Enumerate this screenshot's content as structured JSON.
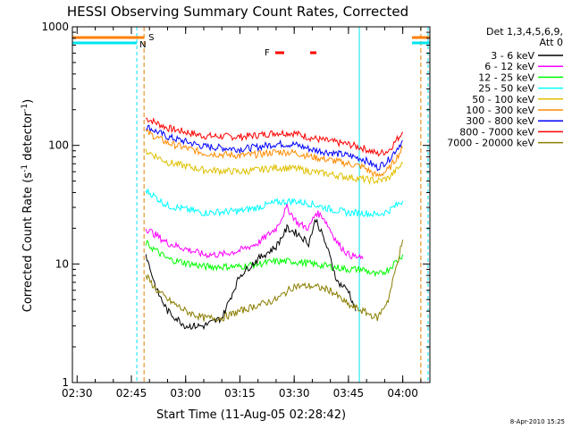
{
  "colors": {
    "background": "#ffffff",
    "axis": "#000000",
    "header_bars": "#ff7f00"
  },
  "chart_data": {
    "type": "line",
    "title": "HESSI Observing Summary Count Rates, Corrected",
    "xlabel": "Start Time (11-Aug-05 02:28:42)",
    "ylabel_prefix": "Corrected Count Rate (s",
    "ylabel_sup1": "-1",
    "ylabel_mid": " detector",
    "ylabel_sup2": "-1",
    "ylabel_suffix": ")",
    "y_scale": "log",
    "ylim": [
      1,
      1000
    ],
    "xlim": [
      "02:28:42",
      "04:07:30"
    ],
    "x_ticks": [
      "02:30",
      "02:45",
      "03:00",
      "03:15",
      "03:30",
      "03:45",
      "04:00"
    ],
    "y_ticks": [
      "1",
      "10",
      "100",
      "1000"
    ],
    "legend": {
      "position": "right",
      "header_line1": "Det 1,3,4,5,6,9,",
      "header_line2": "Att 0",
      "entries": [
        {
          "label": "3 - 6 keV",
          "color": "#000000"
        },
        {
          "label": "6 - 12 keV",
          "color": "#ff00ff"
        },
        {
          "label": "12 - 25 keV",
          "color": "#00ff00"
        },
        {
          "label": "25 - 50 keV",
          "color": "#00ffff"
        },
        {
          "label": "50 - 100 keV",
          "color": "#e0c000"
        },
        {
          "label": "100 - 300 keV",
          "color": "#ff8c00"
        },
        {
          "label": "300 - 800 keV",
          "color": "#0000ff"
        },
        {
          "label": "800 - 7000 keV",
          "color": "#ff0000"
        },
        {
          "label": "7000 - 20000 keV",
          "color": "#8b7d00"
        }
      ]
    },
    "series": [
      {
        "name": "800 - 7000 keV",
        "color": "#ff0000",
        "x": [
          "02:49:00",
          "02:55:00",
          "03:05:00",
          "03:15:00",
          "03:20:00",
          "03:25:00",
          "03:30:00",
          "03:35:00",
          "03:40:00",
          "03:45:00",
          "03:49:00",
          "03:53:00",
          "03:56:00",
          "04:00:00"
        ],
        "y": [
          170,
          140,
          120,
          118,
          122,
          128,
          127,
          115,
          108,
          102,
          95,
          85,
          90,
          130
        ]
      },
      {
        "name": "300 - 800 keV",
        "color": "#0000ff",
        "x": [
          "02:49:00",
          "02:55:00",
          "03:05:00",
          "03:15:00",
          "03:20:00",
          "03:25:00",
          "03:30:00",
          "03:35:00",
          "03:40:00",
          "03:45:00",
          "03:49:00",
          "03:53:00",
          "03:56:00",
          "04:00:00"
        ],
        "y": [
          145,
          118,
          98,
          93,
          97,
          103,
          102,
          92,
          87,
          82,
          77,
          65,
          75,
          110
        ]
      },
      {
        "name": "100 - 300 keV",
        "color": "#ff8c00",
        "x": [
          "02:49:00",
          "02:55:00",
          "03:05:00",
          "03:15:00",
          "03:20:00",
          "03:25:00",
          "03:30:00",
          "03:35:00",
          "03:40:00",
          "03:45:00",
          "03:49:00",
          "03:53:00",
          "03:56:00",
          "04:00:00"
        ],
        "y": [
          130,
          105,
          86,
          82,
          84,
          88,
          87,
          80,
          75,
          70,
          66,
          55,
          62,
          95
        ]
      },
      {
        "name": "50 - 100 keV",
        "color": "#e0c000",
        "x": [
          "02:49:00",
          "02:55:00",
          "03:05:00",
          "03:15:00",
          "03:20:00",
          "03:25:00",
          "03:30:00",
          "03:35:00",
          "03:40:00",
          "03:45:00",
          "03:49:00",
          "03:53:00",
          "03:56:00",
          "04:00:00"
        ],
        "y": [
          90,
          72,
          62,
          60,
          62,
          65,
          64,
          60,
          57,
          54,
          52,
          50,
          53,
          70
        ]
      },
      {
        "name": "25 - 50 keV",
        "color": "#00ffff",
        "x": [
          "02:49:00",
          "02:55:00",
          "03:05:00",
          "03:15:00",
          "03:20:00",
          "03:25:00",
          "03:30:00",
          "03:35:00",
          "03:40:00",
          "03:45:00",
          "03:49:00",
          "03:53:00",
          "03:56:00",
          "04:00:00"
        ],
        "y": [
          42,
          31,
          27,
          28,
          30,
          33,
          34,
          32,
          29,
          27,
          27,
          26,
          28,
          34
        ]
      },
      {
        "name": "6 - 12 keV",
        "color": "#ff00ff",
        "x": [
          "02:49:00",
          "02:55:00",
          "03:05:00",
          "03:10:00",
          "03:15:00",
          "03:20:00",
          "03:25:00",
          "03:28:00",
          "03:31:00",
          "03:34:00",
          "03:36:00",
          "03:38:00",
          "03:42:00",
          "03:45:00",
          "03:49:00"
        ],
        "y": [
          20,
          15,
          12,
          12,
          13,
          15,
          20,
          30,
          22,
          20,
          27,
          25,
          15,
          12,
          11
        ]
      },
      {
        "name": "12 - 25 keV",
        "color": "#00ff00",
        "x": [
          "02:49:00",
          "02:55:00",
          "03:05:00",
          "03:15:00",
          "03:20:00",
          "03:25:00",
          "03:30:00",
          "03:35:00",
          "03:40:00",
          "03:45:00",
          "03:49:00",
          "03:53:00",
          "03:56:00",
          "04:00:00"
        ],
        "y": [
          15,
          11,
          9.5,
          9.5,
          10,
          10.5,
          10.5,
          10,
          9.5,
          9,
          9,
          8,
          9,
          12
        ]
      },
      {
        "name": "3 - 6 keV",
        "color": "#000000",
        "x": [
          "02:49:00",
          "02:52:00",
          "02:55:00",
          "03:00:00",
          "03:05:00",
          "03:10:00",
          "03:15:00",
          "03:20:00",
          "03:25:00",
          "03:28:00",
          "03:31:00",
          "03:34:00",
          "03:36:00",
          "03:39:00",
          "03:42:00",
          "03:45:00",
          "03:47:00"
        ],
        "y": [
          12,
          6,
          4,
          3,
          3,
          3.5,
          8,
          11,
          14,
          20,
          18,
          15,
          24,
          14,
          7,
          6,
          4
        ]
      },
      {
        "name": "7000 - 20000 keV",
        "color": "#8b7d00",
        "x": [
          "02:49:00",
          "02:52:00",
          "02:55:00",
          "03:00:00",
          "03:05:00",
          "03:10:00",
          "03:15:00",
          "03:20:00",
          "03:25:00",
          "03:30:00",
          "03:35:00",
          "03:40:00",
          "03:45:00",
          "03:49:00",
          "03:53:00",
          "03:56:00",
          "04:00:00"
        ],
        "y": [
          8,
          6,
          5,
          4,
          3.5,
          3.5,
          4,
          4.5,
          5,
          6.5,
          6.5,
          6,
          4.5,
          4,
          3.5,
          5,
          16
        ]
      }
    ],
    "markers": {
      "S_label": "S",
      "N_label": "N",
      "F_label": "F",
      "s_line_time": "02:48:30",
      "cyan_lines": [
        "02:28:42",
        "02:46:30",
        "03:48:00",
        "04:07:00"
      ],
      "orange_lines": [
        "02:48:30",
        "04:05:00"
      ]
    },
    "footer_date": "8-Apr-2010 15:25"
  }
}
